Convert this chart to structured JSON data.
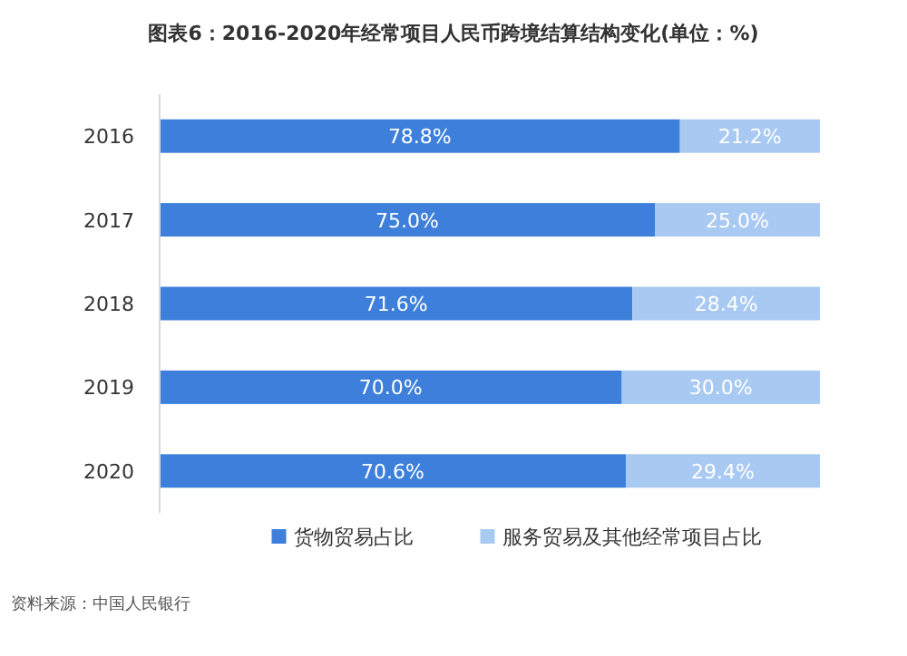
{
  "chart_data": {
    "type": "bar",
    "orientation": "horizontal",
    "stacked": true,
    "title": "图表6：2016-2020年经常项目人民币跨境结算结构变化(单位：%)",
    "categories": [
      "2016",
      "2017",
      "2018",
      "2019",
      "2020"
    ],
    "series": [
      {
        "name": "货物贸易占比",
        "color": "#3d7fdb",
        "values": [
          78.8,
          75.0,
          71.6,
          70.0,
          70.6
        ],
        "value_labels": [
          "78.8%",
          "75.0%",
          "71.6%",
          "70.0%",
          "70.6%"
        ]
      },
      {
        "name": "服务贸易及其他经常项目占比",
        "color": "#a8c9f2",
        "values": [
          21.2,
          25.0,
          28.4,
          30.0,
          29.4
        ],
        "value_labels": [
          "21.2%",
          "25.0%",
          "28.4%",
          "30.0%",
          "29.4%"
        ]
      }
    ],
    "legend": "bottom",
    "tick_labels": "y",
    "annotations": [
      "资料来源：中国人民银行"
    ]
  }
}
